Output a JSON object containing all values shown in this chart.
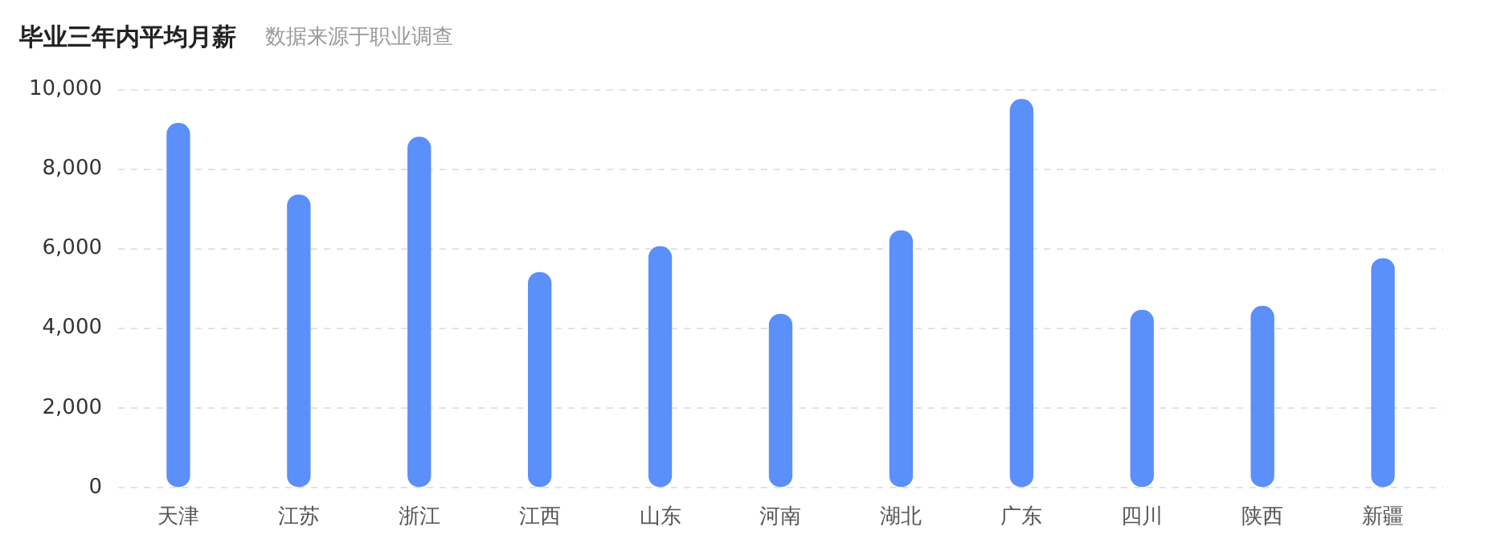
{
  "chart_data": {
    "type": "bar",
    "title": "毕业三年内平均月薪",
    "subtitle": "数据来源于职业调查",
    "categories": [
      "天津",
      "江苏",
      "浙江",
      "江西",
      "山东",
      "河南",
      "湖北",
      "广东",
      "四川",
      "陕西",
      "新疆"
    ],
    "values": [
      9150,
      7350,
      8800,
      5400,
      6050,
      4350,
      6450,
      9750,
      4450,
      4550,
      5750
    ],
    "color": "#5b8ff9",
    "ylim": [
      0,
      10000
    ],
    "yticks": [
      0,
      {
        "value": 2000,
        "label": "2,000"
      },
      {
        "value": 4000,
        "label": "4,000"
      },
      {
        "value": 6000,
        "label": "6,000"
      },
      {
        "value": 8000,
        "label": "8,000"
      },
      {
        "value": 10000,
        "label": "10,000"
      }
    ],
    "grid": "y"
  }
}
